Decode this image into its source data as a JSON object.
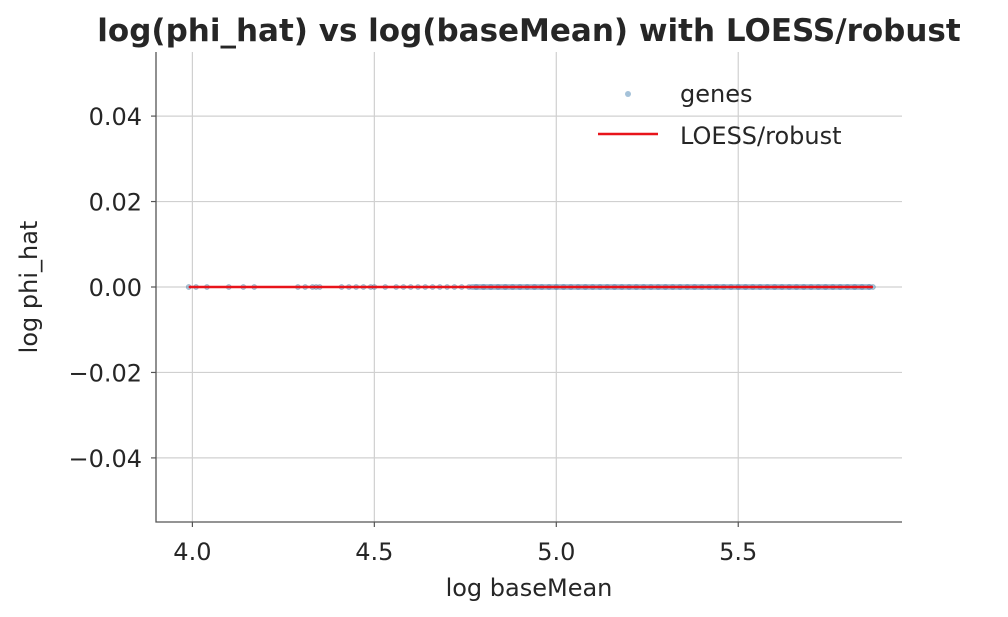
{
  "chart_data": {
    "type": "scatter",
    "title": "log(phi_hat) vs log(baseMean) with LOESS/robust",
    "xlabel": "log baseMean",
    "ylabel": "log phi_hat",
    "xlim": [
      3.9,
      5.95
    ],
    "ylim": [
      -0.055,
      0.055
    ],
    "xticks": [
      4.0,
      4.5,
      5.0,
      5.5
    ],
    "xtick_labels": [
      "4.0",
      "4.5",
      "5.0",
      "5.5"
    ],
    "yticks": [
      0.04,
      0.02,
      0.0,
      -0.02,
      -0.04
    ],
    "ytick_labels": [
      "0.04",
      "0.02",
      "0.00",
      "−0.02",
      "−0.04"
    ],
    "grid": true,
    "legend_position": "top-right",
    "series": [
      {
        "name": "genes",
        "type": "scatter",
        "color": "#5b8fb9",
        "x": [
          3.99,
          4.01,
          4.04,
          4.1,
          4.14,
          4.17,
          4.29,
          4.31,
          4.33,
          4.34,
          4.35,
          4.41,
          4.43,
          4.45,
          4.47,
          4.49,
          4.5,
          4.53,
          4.56,
          4.58,
          4.6,
          4.62,
          4.64,
          4.66,
          4.68,
          4.7,
          4.72,
          4.74,
          4.76,
          4.78,
          4.8,
          4.82,
          4.84,
          4.86,
          4.88,
          4.9,
          4.92,
          4.94,
          4.96,
          4.98,
          5.0,
          5.02,
          5.04,
          5.06,
          5.08,
          5.1,
          5.12,
          5.14,
          5.16,
          5.18,
          5.2,
          5.22,
          5.24,
          5.26,
          5.28,
          5.3,
          5.32,
          5.34,
          5.36,
          5.38,
          5.4,
          5.42,
          5.44,
          5.46,
          5.48,
          5.5,
          5.52,
          5.54,
          5.56,
          5.58,
          5.6,
          5.62,
          5.64,
          5.66,
          5.68,
          5.7,
          5.72,
          5.74,
          5.76,
          5.78,
          5.8,
          5.82,
          5.84,
          5.86,
          5.87
        ],
        "y_value": 0.0
      },
      {
        "name": "LOESS/robust",
        "type": "line",
        "color": "#e8141a",
        "x": [
          3.99,
          5.87
        ],
        "y": [
          0.0,
          0.0
        ]
      }
    ]
  }
}
